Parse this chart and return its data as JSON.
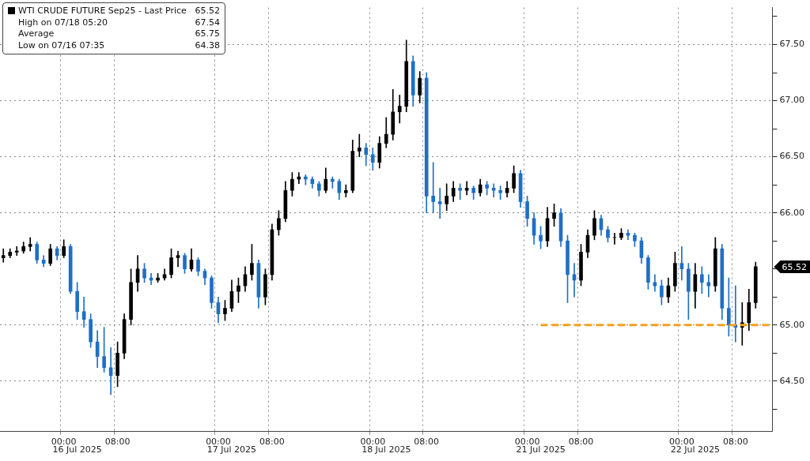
{
  "chart_data": {
    "type": "candlestick",
    "categories": [
      null,
      null,
      null,
      null,
      null,
      null,
      null,
      null,
      null,
      "00:00",
      null,
      null,
      null,
      null,
      null,
      null,
      null,
      "08:00",
      null,
      null,
      null,
      null,
      null,
      null,
      null,
      null,
      null,
      null,
      null,
      null,
      null,
      null,
      "00:00",
      null,
      null,
      null,
      null,
      null,
      null,
      null,
      "08:00",
      null,
      null,
      null,
      null,
      null,
      null,
      null,
      null,
      null,
      null,
      null,
      null,
      null,
      null,
      "00:00",
      null,
      null,
      null,
      null,
      null,
      null,
      null,
      "08:00",
      null,
      null,
      null,
      null,
      null,
      null,
      null,
      null,
      null,
      null,
      null,
      null,
      null,
      null,
      "00:00",
      null,
      null,
      null,
      null,
      null,
      null,
      null,
      "08:00",
      null,
      null,
      null,
      null,
      null,
      null,
      null,
      null,
      null,
      null,
      null,
      null,
      null,
      null,
      "00:00",
      null,
      null,
      null,
      null,
      null,
      null,
      null,
      "08:00",
      null,
      null,
      null,
      null,
      null
    ],
    "series": [
      {
        "name": "WTI CRUDE FUTURE Sep25 - Last Price",
        "color": "#000000",
        "colors": [
          "#000000",
          "#000000",
          "#000000",
          "#000000",
          "#000000",
          "#1f6fc5",
          "#1f6fc5",
          "#000000",
          "#1f6fc5",
          "#000000",
          "#1f6fc5",
          "#1f6fc5",
          "#1f6fc5",
          "#1f6fc5",
          "#1f6fc5",
          "#1f6fc5",
          "#1f6fc5",
          "#000000",
          "#000000",
          "#000000",
          "#000000",
          "#1f6fc5",
          "#1f6fc5",
          "#000000",
          "#000000",
          "#000000",
          "#000000",
          "#1f6fc5",
          "#000000",
          "#1f6fc5",
          "#1f6fc5",
          "#1f6fc5",
          "#1f6fc5",
          "#000000",
          "#000000",
          "#000000",
          "#000000",
          "#000000",
          "#1f6fc5",
          "#000000",
          "#000000",
          "#000000",
          "#000000",
          "#000000",
          "#000000",
          "#1f6fc5",
          "#1f6fc5",
          "#1f6fc5",
          "#000000",
          "#1f6fc5",
          "#1f6fc5",
          "#000000",
          "#000000",
          "#000000",
          "#1f6fc5",
          "#1f6fc5",
          "#000000",
          "#000000",
          "#000000",
          "#000000",
          "#000000",
          "#1f6fc5",
          "#000000",
          "#1f6fc5",
          "#1f6fc5",
          "#1f6fc5",
          "#000000",
          "#000000",
          "#1f6fc5",
          "#000000",
          "#1f6fc5",
          "#000000",
          "#1f6fc5",
          "#1f6fc5",
          "#1f6fc5",
          "#000000",
          "#000000",
          "#1f6fc5",
          "#1f6fc5",
          "#1f6fc5",
          "#1f6fc5",
          "#000000",
          "#000000",
          "#1f6fc5",
          "#1f6fc5",
          "#1f6fc5",
          "#000000",
          "#000000",
          "#000000",
          "#1f6fc5",
          "#1f6fc5",
          "#000000",
          "#000000",
          "#1f6fc5",
          "#1f6fc5",
          "#1f6fc5",
          "#1f6fc5",
          "#1f6fc5",
          "#1f6fc5",
          "#000000",
          "#000000",
          "#1f6fc5",
          "#1f6fc5",
          "#000000",
          "#1f6fc5",
          "#1f6fc5",
          "#000000",
          "#1f6fc5",
          "#1f6fc5",
          "#1f6fc5",
          "#000000",
          "#000000",
          "#000000",
          null,
          null
        ],
        "value_labels": [
          null,
          null,
          null,
          null,
          null,
          null,
          null,
          null,
          null,
          null,
          null,
          null,
          null,
          null,
          null,
          null,
          null,
          null,
          null,
          null,
          null,
          null,
          null,
          null,
          null,
          null,
          null,
          null,
          null,
          null,
          null,
          null,
          null,
          null,
          null,
          null,
          null,
          null,
          null,
          null,
          null,
          null,
          null,
          null,
          null,
          null,
          null,
          null,
          null,
          null,
          null,
          null,
          null,
          null,
          null,
          null,
          null,
          null,
          null,
          null,
          null,
          null,
          null,
          null,
          null,
          null,
          null,
          null,
          null,
          null,
          null,
          null,
          null,
          null,
          null,
          null,
          null,
          null,
          null,
          null,
          null,
          null,
          null,
          null,
          null,
          null,
          null,
          null,
          null,
          null,
          null,
          null,
          null,
          null,
          null,
          null,
          null,
          null,
          null,
          null,
          null,
          null,
          null,
          null,
          null,
          null,
          null,
          null,
          null,
          null,
          null,
          null,
          "65.52",
          null,
          null
        ],
        "ohlc": [
          [
            65.6,
            65.68,
            65.56,
            65.62
          ],
          [
            65.62,
            65.68,
            65.6,
            65.65
          ],
          [
            65.65,
            65.7,
            65.62,
            65.66
          ],
          [
            65.66,
            65.74,
            65.64,
            65.7
          ],
          [
            65.7,
            65.78,
            65.66,
            65.72
          ],
          [
            65.72,
            65.74,
            65.55,
            65.58
          ],
          [
            65.58,
            65.62,
            65.52,
            65.55
          ],
          [
            65.55,
            65.72,
            65.53,
            65.68
          ],
          [
            65.68,
            65.7,
            65.58,
            65.62
          ],
          [
            65.62,
            65.76,
            65.6,
            65.7
          ],
          [
            65.7,
            65.72,
            65.28,
            65.3
          ],
          [
            65.3,
            65.38,
            65.05,
            65.12
          ],
          [
            65.12,
            65.25,
            64.98,
            65.05
          ],
          [
            65.05,
            65.1,
            64.8,
            64.85
          ],
          [
            64.85,
            64.95,
            64.62,
            64.72
          ],
          [
            64.72,
            64.98,
            64.58,
            64.62
          ],
          [
            64.62,
            64.8,
            64.38,
            64.55
          ],
          [
            64.55,
            64.85,
            64.45,
            64.75
          ],
          [
            64.75,
            65.1,
            64.7,
            65.05
          ],
          [
            65.05,
            65.5,
            65.0,
            65.38
          ],
          [
            65.38,
            65.62,
            65.3,
            65.5
          ],
          [
            65.5,
            65.55,
            65.38,
            65.42
          ],
          [
            65.42,
            65.46,
            65.36,
            65.4
          ],
          [
            65.4,
            65.46,
            65.38,
            65.42
          ],
          [
            65.42,
            65.5,
            65.4,
            65.45
          ],
          [
            65.45,
            65.68,
            65.42,
            65.6
          ],
          [
            65.6,
            65.66,
            65.52,
            65.62
          ],
          [
            65.62,
            65.64,
            65.46,
            65.5
          ],
          [
            65.5,
            65.68,
            65.48,
            65.58
          ],
          [
            65.58,
            65.6,
            65.44,
            65.48
          ],
          [
            65.48,
            65.5,
            65.36,
            65.42
          ],
          [
            65.42,
            65.44,
            65.15,
            65.2
          ],
          [
            65.2,
            65.25,
            65.02,
            65.1
          ],
          [
            65.1,
            65.22,
            65.04,
            65.15
          ],
          [
            65.15,
            65.4,
            65.12,
            65.3
          ],
          [
            65.3,
            65.42,
            65.2,
            65.35
          ],
          [
            65.35,
            65.52,
            65.3,
            65.45
          ],
          [
            65.45,
            65.72,
            65.4,
            65.55
          ],
          [
            65.55,
            65.58,
            65.15,
            65.25
          ],
          [
            65.25,
            65.5,
            65.18,
            65.45
          ],
          [
            65.45,
            65.9,
            65.4,
            65.85
          ],
          [
            65.85,
            66.02,
            65.8,
            65.95
          ],
          [
            65.95,
            66.28,
            65.92,
            66.2
          ],
          [
            66.2,
            66.36,
            66.15,
            66.3
          ],
          [
            66.3,
            66.36,
            66.26,
            66.32
          ],
          [
            66.32,
            66.34,
            66.25,
            66.3
          ],
          [
            66.3,
            66.32,
            66.22,
            66.26
          ],
          [
            66.26,
            66.28,
            66.15,
            66.2
          ],
          [
            66.2,
            66.4,
            66.18,
            66.3
          ],
          [
            66.3,
            66.32,
            66.22,
            66.28
          ],
          [
            66.28,
            66.3,
            66.12,
            66.18
          ],
          [
            66.18,
            66.25,
            66.14,
            66.2
          ],
          [
            66.2,
            66.65,
            66.18,
            66.55
          ],
          [
            66.55,
            66.7,
            66.5,
            66.58
          ],
          [
            66.58,
            66.62,
            66.42,
            66.52
          ],
          [
            66.52,
            66.58,
            66.38,
            66.45
          ],
          [
            66.45,
            66.68,
            66.4,
            66.62
          ],
          [
            66.62,
            66.85,
            66.58,
            66.7
          ],
          [
            66.7,
            67.1,
            66.65,
            66.9
          ],
          [
            66.9,
            67.05,
            66.8,
            66.95
          ],
          [
            66.95,
            67.54,
            66.9,
            67.35
          ],
          [
            67.35,
            67.4,
            66.95,
            67.05
          ],
          [
            67.05,
            67.26,
            66.98,
            67.2
          ],
          [
            67.2,
            67.25,
            66.0,
            66.15
          ],
          [
            66.15,
            66.45,
            66.0,
            66.1
          ],
          [
            66.1,
            66.22,
            65.95,
            66.08
          ],
          [
            66.08,
            66.26,
            66.02,
            66.15
          ],
          [
            66.15,
            66.28,
            66.1,
            66.22
          ],
          [
            66.22,
            66.26,
            66.12,
            66.2
          ],
          [
            66.2,
            66.28,
            66.16,
            66.22
          ],
          [
            66.22,
            66.24,
            66.12,
            66.18
          ],
          [
            66.18,
            66.3,
            66.15,
            66.25
          ],
          [
            66.25,
            66.28,
            66.16,
            66.22
          ],
          [
            66.22,
            66.26,
            66.14,
            66.2
          ],
          [
            66.2,
            66.24,
            66.12,
            66.18
          ],
          [
            66.18,
            66.28,
            66.14,
            66.22
          ],
          [
            66.22,
            66.42,
            66.18,
            66.35
          ],
          [
            66.35,
            66.38,
            66.05,
            66.1
          ],
          [
            66.1,
            66.15,
            65.88,
            65.95
          ],
          [
            65.95,
            66.0,
            65.72,
            65.8
          ],
          [
            65.8,
            65.88,
            65.68,
            65.75
          ],
          [
            65.75,
            66.05,
            65.7,
            65.95
          ],
          [
            65.95,
            66.08,
            65.88,
            66.0
          ],
          [
            66.0,
            66.04,
            65.7,
            65.75
          ],
          [
            65.75,
            65.8,
            65.2,
            65.45
          ],
          [
            65.45,
            65.55,
            65.25,
            65.4
          ],
          [
            65.4,
            65.72,
            65.35,
            65.65
          ],
          [
            65.65,
            65.85,
            65.6,
            65.8
          ],
          [
            65.8,
            66.02,
            65.76,
            65.95
          ],
          [
            65.95,
            65.98,
            65.8,
            65.85
          ],
          [
            65.85,
            65.88,
            65.74,
            65.78
          ],
          [
            65.78,
            65.82,
            65.72,
            65.78
          ],
          [
            65.78,
            65.86,
            65.76,
            65.82
          ],
          [
            65.82,
            65.85,
            65.76,
            65.8
          ],
          [
            65.8,
            65.82,
            65.7,
            65.75
          ],
          [
            65.75,
            65.78,
            65.55,
            65.6
          ],
          [
            65.6,
            65.62,
            65.32,
            65.38
          ],
          [
            65.38,
            65.45,
            65.3,
            65.35
          ],
          [
            65.35,
            65.4,
            65.18,
            65.25
          ],
          [
            65.25,
            65.42,
            65.2,
            65.35
          ],
          [
            65.35,
            65.65,
            65.3,
            65.55
          ],
          [
            65.55,
            65.7,
            65.4,
            65.5
          ],
          [
            65.5,
            65.55,
            65.05,
            65.3
          ],
          [
            65.3,
            65.55,
            65.15,
            65.45
          ],
          [
            65.45,
            65.52,
            65.28,
            65.38
          ],
          [
            65.38,
            65.45,
            65.25,
            65.35
          ],
          [
            65.35,
            65.78,
            65.3,
            65.68
          ],
          [
            65.68,
            65.72,
            65.05,
            65.15
          ],
          [
            65.15,
            65.42,
            64.9,
            65.0
          ],
          [
            65.0,
            65.35,
            64.85,
            64.98
          ],
          [
            64.98,
            65.2,
            64.82,
            65.02
          ],
          [
            65.02,
            65.32,
            64.95,
            65.2
          ],
          [
            65.2,
            65.56,
            65.15,
            65.52
          ],
          null,
          null
        ]
      },
      {
        "type": "line",
        "color": "#f5a01e",
        "line_style": "dashed",
        "marker": "none",
        "values": [
          null,
          null,
          null,
          null,
          null,
          null,
          null,
          null,
          null,
          null,
          null,
          null,
          null,
          null,
          null,
          null,
          null,
          null,
          null,
          null,
          null,
          null,
          null,
          null,
          null,
          null,
          null,
          null,
          null,
          null,
          null,
          null,
          null,
          null,
          null,
          null,
          null,
          null,
          null,
          null,
          null,
          null,
          null,
          null,
          null,
          null,
          null,
          null,
          null,
          null,
          null,
          null,
          null,
          null,
          null,
          null,
          null,
          null,
          null,
          null,
          null,
          null,
          null,
          null,
          null,
          null,
          null,
          null,
          null,
          null,
          null,
          null,
          null,
          null,
          null,
          null,
          null,
          null,
          null,
          null,
          65,
          65,
          65,
          65,
          65,
          65,
          65,
          65,
          65,
          65,
          65,
          65,
          65,
          65,
          65,
          65,
          65,
          65,
          65,
          65,
          65,
          65,
          65,
          65,
          65,
          65,
          65,
          65,
          65,
          65,
          65,
          65,
          65,
          65,
          65
        ]
      }
    ],
    "ylim": [
      64.05,
      67.83
    ],
    "yticks": [
      {
        "value": 64.25,
        "label": null
      },
      {
        "value": 64.5,
        "label": "64.50"
      },
      {
        "value": 64.75,
        "label": null
      },
      {
        "value": 65,
        "label": "65.00"
      },
      {
        "value": 65.25,
        "label": null
      },
      {
        "value": 65.5,
        "label": null
      },
      {
        "value": 65.75,
        "label": null
      },
      {
        "value": 66,
        "label": "66.00"
      },
      {
        "value": 66.25,
        "label": null
      },
      {
        "value": 66.5,
        "label": "66.50"
      },
      {
        "value": 66.75,
        "label": null
      },
      {
        "value": 67,
        "label": "67.00"
      },
      {
        "value": 67.25,
        "label": null
      },
      {
        "value": 67.5,
        "label": "67.50"
      },
      {
        "value": 67.75,
        "label": null
      }
    ],
    "grid": true,
    "legend": "top left",
    "annotations": [
      "High on 07/18 05:20 67.54",
      "Average 65.75",
      "Low on 07/16 07:35 64.38",
      "16 Jul 2025",
      "17 Jul 2025",
      "18 Jul 2025",
      "21 Jul 2025",
      "22 Jul 2025"
    ]
  }
}
